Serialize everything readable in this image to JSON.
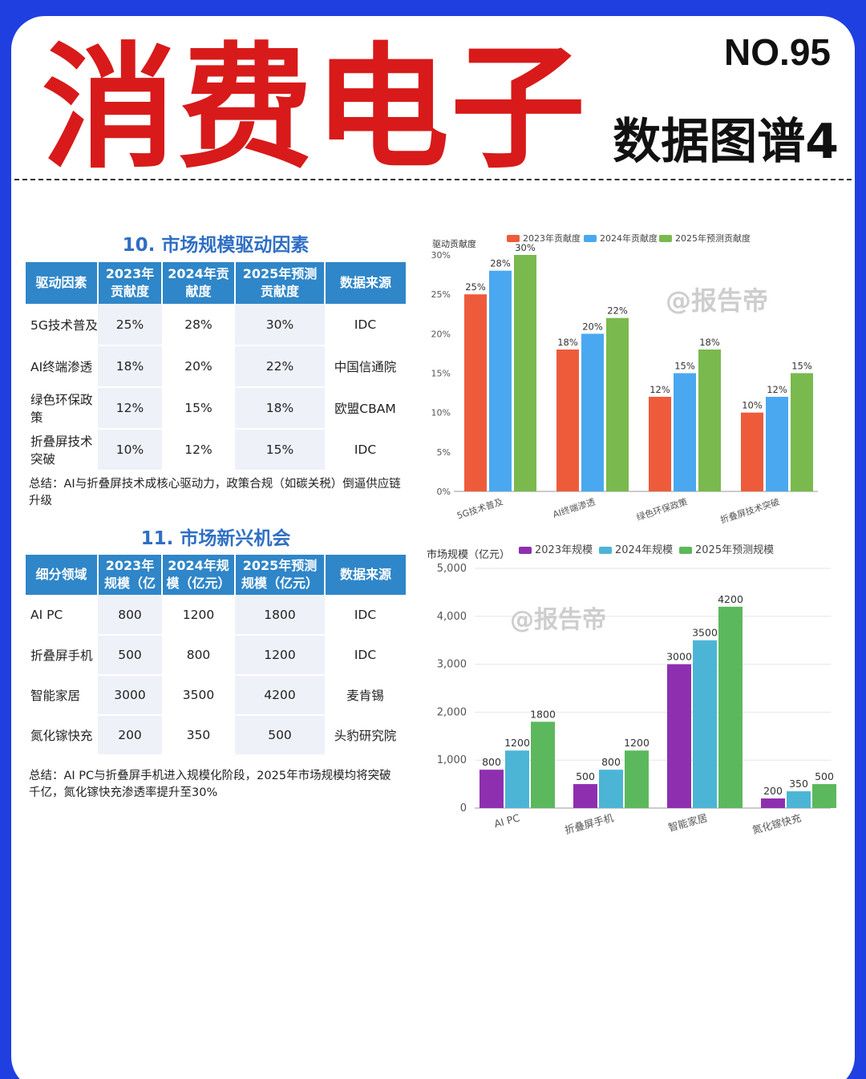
{
  "header": {
    "main_title": "消费电子",
    "issue_no": "NO.95",
    "sub_title": "数据图谱4"
  },
  "section10": {
    "title": "10. 市场规模驱动因素",
    "columns": [
      "驱动因素",
      "2023年贡献度",
      "2024年贡献度",
      "2025年预测贡献度",
      "数据来源"
    ],
    "rows": [
      [
        "5G技术普及",
        "25%",
        "28%",
        "30%",
        "IDC"
      ],
      [
        "AI终端渗透",
        "18%",
        "20%",
        "22%",
        "中国信通院"
      ],
      [
        "绿色环保政策",
        "12%",
        "15%",
        "18%",
        "欧盟CBAM"
      ],
      [
        "折叠屏技术突破",
        "10%",
        "12%",
        "15%",
        "IDC"
      ]
    ],
    "summary": "总结：AI与折叠屏技术成核心驱动力，政策合规（如碳关税）倒逼供应链升级"
  },
  "section11": {
    "title": "11. 市场新兴机会",
    "columns": [
      "细分领域",
      "2023年规模（亿",
      "2024年规模（亿元）",
      "2025年预测规模（亿元）",
      "数据来源"
    ],
    "rows": [
      [
        "AI PC",
        "800",
        "1200",
        "1800",
        "IDC"
      ],
      [
        "折叠屏手机",
        "500",
        "800",
        "1200",
        "IDC"
      ],
      [
        "智能家居",
        "3000",
        "3500",
        "4200",
        "麦肯锡"
      ],
      [
        "氮化镓快充",
        "200",
        "350",
        "500",
        "头豹研究院"
      ]
    ],
    "summary": "总结：AI PC与折叠屏手机进入规模化阶段，2025年市场规模均将突破千亿，氮化镓快充渗透率提升至30%"
  },
  "watermark": "@报告帝",
  "chart_data": [
    {
      "type": "bar",
      "ylabel": "驱动贡献度",
      "categories": [
        "5G技术普及",
        "AI终端渗透",
        "绿色环保政策",
        "折叠屏技术突破"
      ],
      "series": [
        {
          "name": "2023年贡献度",
          "values": [
            25,
            18,
            12,
            10
          ],
          "color": "#ee5b3b"
        },
        {
          "name": "2024年贡献度",
          "values": [
            28,
            20,
            15,
            12
          ],
          "color": "#4aa8f0"
        },
        {
          "name": "2025年预测贡献度",
          "values": [
            30,
            22,
            18,
            15
          ],
          "color": "#79b94e"
        }
      ],
      "ylim": [
        0,
        30
      ],
      "yticks": [
        0,
        5,
        10,
        15,
        20,
        25,
        30
      ],
      "ytick_labels": [
        "0%",
        "5%",
        "10%",
        "15%",
        "20%",
        "25%",
        "30%"
      ],
      "data_labels": [
        "25%",
        "28%",
        "30%",
        "18%",
        "20%",
        "22%",
        "12%",
        "15%",
        "18%",
        "10%",
        "12%",
        "15%"
      ],
      "grid": false,
      "legend": "top"
    },
    {
      "type": "bar",
      "ylabel": "市场规模（亿元）",
      "categories": [
        "AI PC",
        "折叠屏手机",
        "智能家居",
        "氮化镓快充"
      ],
      "series": [
        {
          "name": "2023年规模",
          "values": [
            800,
            500,
            3000,
            200
          ],
          "color": "#8e2fb0"
        },
        {
          "name": "2024年规模",
          "values": [
            1200,
            800,
            3500,
            350
          ],
          "color": "#4cb5d6"
        },
        {
          "name": "2025年预测规模",
          "values": [
            1800,
            1200,
            4200,
            500
          ],
          "color": "#5cb85c"
        }
      ],
      "ylim": [
        0,
        5000
      ],
      "yticks": [
        0,
        1000,
        2000,
        3000,
        4000,
        5000
      ],
      "ytick_labels": [
        "0",
        "1,000",
        "2,000",
        "3,000",
        "4,000",
        "5,000"
      ],
      "grid": true,
      "legend": "top"
    }
  ]
}
